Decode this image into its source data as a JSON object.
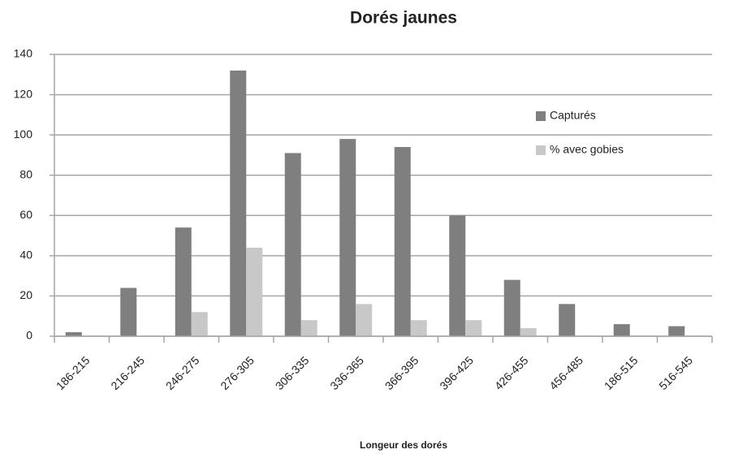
{
  "chart_data": {
    "type": "bar",
    "title": "Dorés jaunes",
    "x_label": "Longeur des dorés",
    "categories": [
      "186-215",
      "216-245",
      "246-275",
      "276-305",
      "306-335",
      "336-365",
      "366-395",
      "396-425",
      "426-455",
      "456-485",
      "186-515",
      "516-545"
    ],
    "series": [
      {
        "name": "Capturés",
        "color": "#7f7f7f",
        "values": [
          2,
          24,
          54,
          132,
          91,
          98,
          94,
          60,
          28,
          16,
          6,
          5
        ]
      },
      {
        "name": "% avec gobies",
        "color": "#c8c8c8",
        "values": [
          0,
          0,
          12,
          44,
          8,
          16,
          8,
          8,
          4,
          0,
          0,
          0
        ]
      }
    ],
    "ylim": [
      0,
      140
    ],
    "yticks": [
      0,
      20,
      40,
      60,
      80,
      100,
      120,
      140
    ],
    "grid": true,
    "legend": "upper right"
  }
}
